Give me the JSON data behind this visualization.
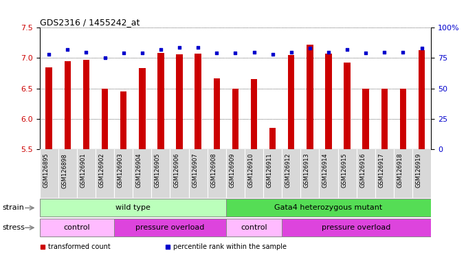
{
  "title": "GDS2316 / 1455242_at",
  "samples": [
    "GSM126895",
    "GSM126898",
    "GSM126901",
    "GSM126902",
    "GSM126903",
    "GSM126904",
    "GSM126905",
    "GSM126906",
    "GSM126907",
    "GSM126908",
    "GSM126909",
    "GSM126910",
    "GSM126911",
    "GSM126912",
    "GSM126913",
    "GSM126914",
    "GSM126915",
    "GSM126916",
    "GSM126917",
    "GSM126918",
    "GSM126919"
  ],
  "transformed_count": [
    6.85,
    6.95,
    6.97,
    6.5,
    6.45,
    6.84,
    7.08,
    7.06,
    7.07,
    6.67,
    6.5,
    6.65,
    5.85,
    7.05,
    7.22,
    7.07,
    6.93,
    6.5,
    6.5,
    6.5,
    7.13
  ],
  "percentile_rank": [
    78,
    82,
    80,
    75,
    79,
    79,
    82,
    84,
    84,
    79,
    79,
    80,
    78,
    80,
    83,
    80,
    82,
    79,
    80,
    80,
    83
  ],
  "ylim_left": [
    5.5,
    7.5
  ],
  "ylim_right": [
    0,
    100
  ],
  "yticks_left": [
    5.5,
    6.0,
    6.5,
    7.0,
    7.5
  ],
  "yticks_right": [
    0,
    25,
    50,
    75,
    100
  ],
  "bar_color": "#cc0000",
  "dot_color": "#0000cc",
  "bar_bottom": 5.5,
  "strain_groups": [
    {
      "label": "wild type",
      "start": 0,
      "end": 10,
      "color": "#bbffbb"
    },
    {
      "label": "Gata4 heterozygous mutant",
      "start": 10,
      "end": 21,
      "color": "#55dd55"
    }
  ],
  "stress_groups": [
    {
      "label": "control",
      "start": 0,
      "end": 4,
      "color": "#ffbbff"
    },
    {
      "label": "pressure overload",
      "start": 4,
      "end": 10,
      "color": "#dd44dd"
    },
    {
      "label": "control",
      "start": 10,
      "end": 13,
      "color": "#ffbbff"
    },
    {
      "label": "pressure overload",
      "start": 13,
      "end": 21,
      "color": "#dd44dd"
    }
  ],
  "legend_items": [
    {
      "label": "transformed count",
      "color": "#cc0000"
    },
    {
      "label": "percentile rank within the sample",
      "color": "#0000cc"
    }
  ],
  "bg_color": "#ffffff",
  "tick_bg_color": "#d8d8d8",
  "bar_width": 0.35,
  "title_fontsize": 9,
  "axis_fontsize": 8,
  "label_fontsize": 8,
  "tick_fontsize": 6,
  "legend_fontsize": 7
}
